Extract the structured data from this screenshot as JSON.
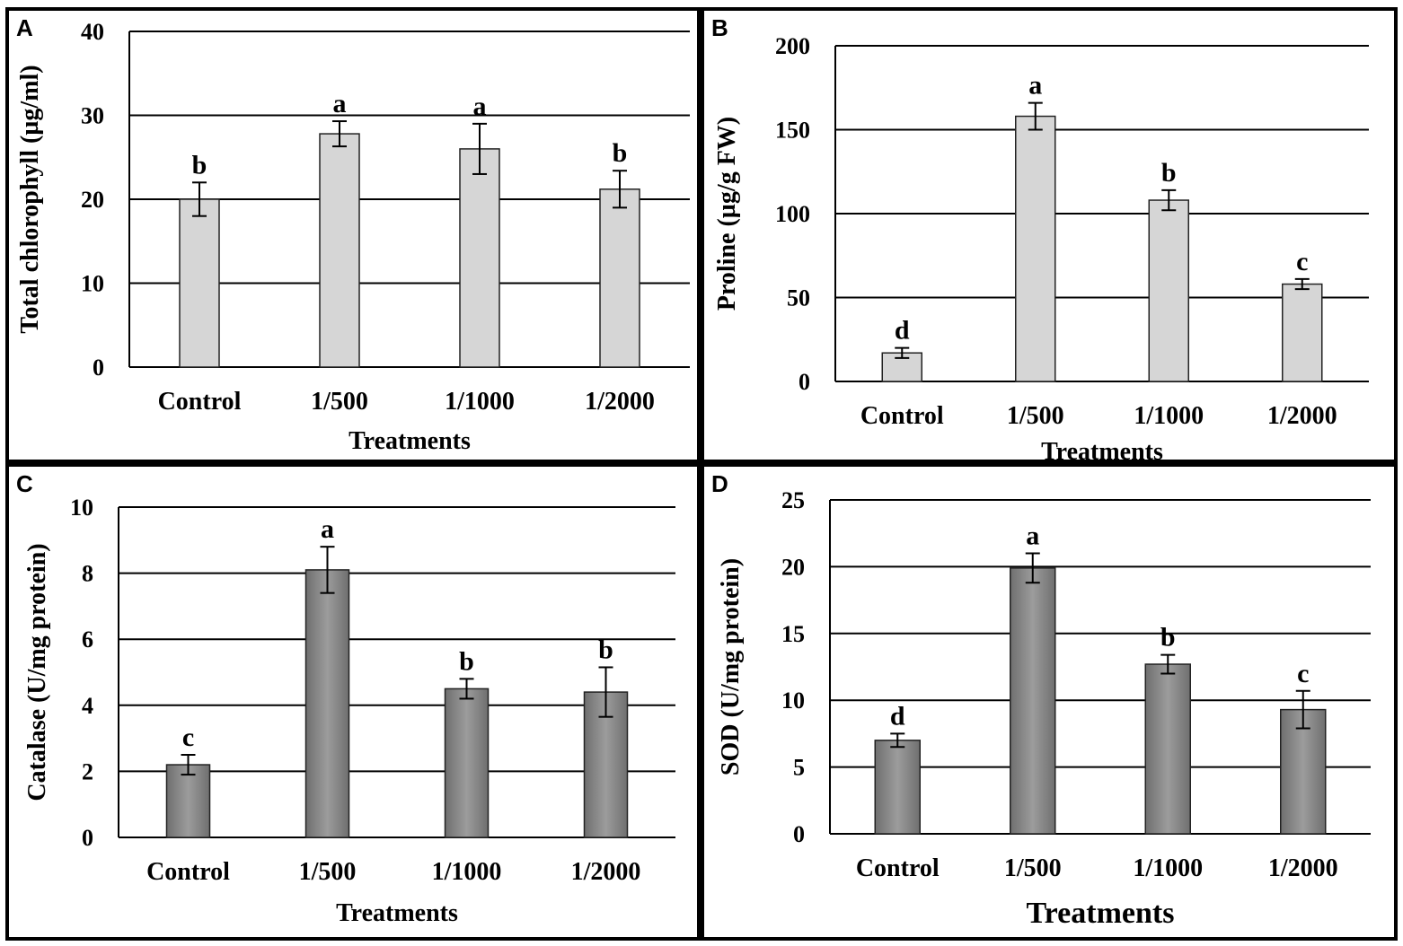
{
  "colors": {
    "light_bar": "#d6d6d6",
    "dark_bar_edge": "#6f6f6f",
    "dark_bar_mid": "#9c9c9c",
    "grid": "#000000"
  },
  "chart_data": [
    {
      "panel": "A",
      "type": "bar",
      "title": "",
      "xlabel": "Treatments",
      "ylabel": "Total chlorophyll (µg/ml)",
      "categories": [
        "Control",
        "1/500",
        "1/1000",
        "1/2000"
      ],
      "values": [
        20,
        27.8,
        26,
        21.2
      ],
      "errors": [
        2,
        1.5,
        3,
        2.2
      ],
      "sig_letters": [
        "b",
        "a",
        "a",
        "b"
      ],
      "ylim": [
        0,
        40
      ],
      "yticks": [
        0,
        10,
        20,
        30,
        40
      ],
      "bar_style": "light",
      "grid": true
    },
    {
      "panel": "B",
      "type": "bar",
      "title": "",
      "xlabel": "Treatments",
      "ylabel": "Proline (µg/g FW)",
      "categories": [
        "Control",
        "1/500",
        "1/1000",
        "1/2000"
      ],
      "values": [
        17,
        158,
        108,
        58
      ],
      "errors": [
        3,
        8,
        6,
        3
      ],
      "sig_letters": [
        "d",
        "a",
        "b",
        "c"
      ],
      "ylim": [
        0,
        200
      ],
      "yticks": [
        0,
        50,
        100,
        150,
        200
      ],
      "bar_style": "light",
      "grid": true
    },
    {
      "panel": "C",
      "type": "bar",
      "title": "",
      "xlabel": "Treatments",
      "ylabel": "Catalase (U/mg protein)",
      "categories": [
        "Control",
        "1/500",
        "1/1000",
        "1/2000"
      ],
      "values": [
        2.2,
        8.1,
        4.5,
        4.4
      ],
      "errors": [
        0.3,
        0.7,
        0.3,
        0.75
      ],
      "sig_letters": [
        "c",
        "a",
        "b",
        "b"
      ],
      "ylim": [
        0,
        10
      ],
      "yticks": [
        0,
        2,
        4,
        6,
        8,
        10
      ],
      "bar_style": "dark",
      "grid": true
    },
    {
      "panel": "D",
      "type": "bar",
      "title": "",
      "xlabel": "Treatments",
      "ylabel": "SOD (U/mg protein)",
      "categories": [
        "Control",
        "1/500",
        "1/1000",
        "1/2000"
      ],
      "values": [
        7,
        19.9,
        12.7,
        9.3
      ],
      "errors": [
        0.5,
        1.1,
        0.7,
        1.4
      ],
      "sig_letters": [
        "d",
        "a",
        "b",
        "c"
      ],
      "ylim": [
        0,
        25
      ],
      "yticks": [
        0,
        5,
        10,
        15,
        20,
        25
      ],
      "bar_style": "dark",
      "grid": true
    }
  ]
}
